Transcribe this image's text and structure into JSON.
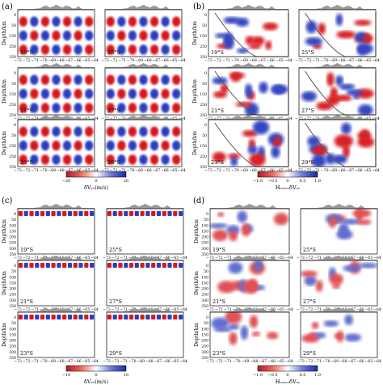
{
  "figure": {
    "panel_labels": [
      "(a)",
      "(b)",
      "(c)",
      "(d)"
    ],
    "ylabel": "Depth/km",
    "x_ticks": [
      "−73",
      "−72",
      "−71",
      "−70",
      "−69",
      "−68",
      "−67",
      "−66",
      "−65",
      "−64"
    ],
    "latitudes": [
      "19°S",
      "25°S",
      "21°S",
      "27°S",
      "23°S",
      "29°S"
    ],
    "depth_ticks_ab": [
      "0",
      "50",
      "150",
      "250",
      "350"
    ],
    "depth_ticks_cd": [
      "0",
      "50",
      "100",
      "150",
      "200",
      "250",
      "300",
      "350"
    ]
  },
  "colors": {
    "negative": "#d7191c",
    "positive": "#2c3cbf",
    "zero": "#ffffff",
    "topography": "#9a9a9a",
    "slab_outline": "#555555"
  },
  "chart_data": [
    {
      "type": "heatmap",
      "panel": "(a)",
      "description_pattern": "checkerboard",
      "x": [
        -73,
        -72,
        -71,
        -70,
        -69,
        -68,
        -67,
        -66,
        -65,
        -64
      ],
      "colorbar": {
        "label": "δVₛᵥ(m/s)",
        "ticks": [
          "−20",
          "0",
          "20"
        ],
        "range": [
          -20,
          20
        ]
      },
      "latitudes": [
        "19°S",
        "25°S",
        "21°S",
        "27°S",
        "23°S",
        "29°S"
      ]
    },
    {
      "type": "heatmap",
      "panel": "(b)",
      "x": [
        -73,
        -72,
        -71,
        -70,
        -69,
        -68,
        -67,
        -66,
        -65,
        -64
      ],
      "colorbar": {
        "label": "HₛᵥᵥₛᵥδVₛᵥ",
        "ticks": [
          "−1.0",
          "−0.5",
          "0",
          "0.5",
          "1.0"
        ],
        "range": [
          -1.0,
          1.0
        ]
      },
      "latitudes": [
        "19°S",
        "25°S",
        "21°S",
        "27°S",
        "23°S",
        "29°S"
      ]
    },
    {
      "type": "heatmap",
      "panel": "(c)",
      "x": [
        -73,
        -72,
        -71,
        -70,
        -69,
        -68,
        -67,
        -66,
        -65,
        -64
      ],
      "colorbar": {
        "label": "δVₛᵥ(m/s)",
        "ticks": [
          "−10",
          "0",
          "10"
        ],
        "range": [
          -10,
          10
        ]
      },
      "latitudes": [
        "19°S",
        "25°S",
        "21°S",
        "27°S",
        "23°S",
        "29°S"
      ]
    },
    {
      "type": "heatmap",
      "panel": "(d)",
      "x": [
        -73,
        -72,
        -71,
        -70,
        -69,
        -68,
        -67,
        -66,
        -65,
        -64
      ],
      "colorbar": {
        "label": "HₛᵥᵥₛᵥδVₛᵥ",
        "ticks": [
          "−1.0",
          "−0.5",
          "0",
          "0.5",
          "1.0"
        ],
        "range": [
          -1.0,
          1.0
        ]
      },
      "latitudes": [
        "19°S",
        "25°S",
        "21°S",
        "27°S",
        "23°S",
        "29°S"
      ]
    }
  ]
}
